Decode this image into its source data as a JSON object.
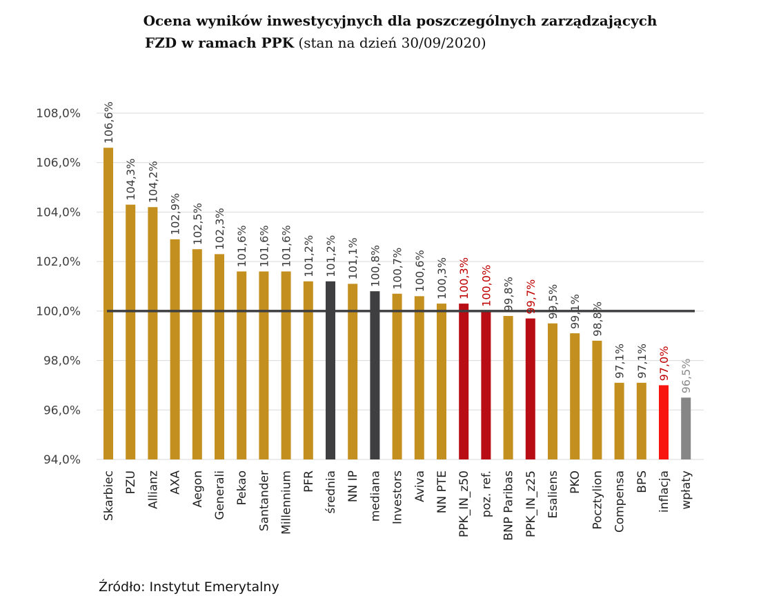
{
  "title": {
    "line1": "Ocena wyników inwestycyjnych dla poszczególnych zarządzających",
    "line2_bold": "FZD w ramach PPK",
    "line2_normal": " (stan na dzień 30/09/2020)"
  },
  "source": "Źródło: Instytut Emerytalny",
  "colors": {
    "gold": "#C38F1F",
    "dark": "#3F3F41",
    "darkred": "#B80D15",
    "red": "#F8150F",
    "gray": "#868686",
    "label_normal": "#3A3A3A",
    "label_red": "#C00000",
    "label_gray": "#8A8A8A",
    "grid": "#D9D9D9",
    "ref_line": "#3F3F41"
  },
  "chart_data": {
    "type": "bar",
    "title": "Ocena wyników inwestycyjnych dla poszczególnych zarządzających FZD w ramach PPK (stan na dzień 30/09/2020)",
    "xlabel": "",
    "ylabel": "",
    "ylim": [
      94.0,
      108.0
    ],
    "yticks": [
      94.0,
      96.0,
      98.0,
      100.0,
      102.0,
      104.0,
      106.0,
      108.0
    ],
    "ytick_labels": [
      "94,0%",
      "96,0%",
      "98,0%",
      "100,0%",
      "102,0%",
      "104,0%",
      "106,0%",
      "108,0%"
    ],
    "grid": true,
    "reference_line": 100.0,
    "categories": [
      "Skarbiec",
      "PZU",
      "Allianz",
      "AXA",
      "Aegon",
      "Generali",
      "Pekao",
      "Santander",
      "Millennium",
      "PFR",
      "średnia",
      "NN IP",
      "mediana",
      "Investors",
      "Aviva",
      "NN PTE",
      "PPK_IN_z50",
      "poz. ref.",
      "BNP Paribas",
      "PPK_IN_z25",
      "Esaliens",
      "PKO",
      "Pocztylion",
      "Compensa",
      "BPS",
      "inflacja",
      "wpłaty"
    ],
    "values": [
      106.6,
      104.3,
      104.2,
      102.9,
      102.5,
      102.3,
      101.6,
      101.6,
      101.6,
      101.2,
      101.2,
      101.1,
      100.8,
      100.7,
      100.6,
      100.3,
      100.3,
      100.0,
      99.8,
      99.7,
      99.5,
      99.1,
      98.8,
      97.1,
      97.1,
      97.0,
      96.5
    ],
    "value_labels": [
      "106,6%",
      "104,3%",
      "104,2%",
      "102,9%",
      "102,5%",
      "102,3%",
      "101,6%",
      "101,6%",
      "101,6%",
      "101,2%",
      "101,2%",
      "101,1%",
      "100,8%",
      "100,7%",
      "100,6%",
      "100,3%",
      "100,3%",
      "100,0%",
      "99,8%",
      "99,7%",
      "99,5%",
      "99,1%",
      "98,8%",
      "97,1%",
      "97,1%",
      "97,0%",
      "96,5%"
    ],
    "bar_colors": [
      "gold",
      "gold",
      "gold",
      "gold",
      "gold",
      "gold",
      "gold",
      "gold",
      "gold",
      "gold",
      "dark",
      "gold",
      "dark",
      "gold",
      "gold",
      "gold",
      "darkred",
      "darkred",
      "gold",
      "darkred",
      "gold",
      "gold",
      "gold",
      "gold",
      "gold",
      "red",
      "gray"
    ],
    "label_colors": [
      "label_normal",
      "label_normal",
      "label_normal",
      "label_normal",
      "label_normal",
      "label_normal",
      "label_normal",
      "label_normal",
      "label_normal",
      "label_normal",
      "label_normal",
      "label_normal",
      "label_normal",
      "label_normal",
      "label_normal",
      "label_normal",
      "label_red",
      "label_red",
      "label_normal",
      "label_red",
      "label_normal",
      "label_normal",
      "label_normal",
      "label_normal",
      "label_normal",
      "label_red",
      "label_gray"
    ]
  }
}
